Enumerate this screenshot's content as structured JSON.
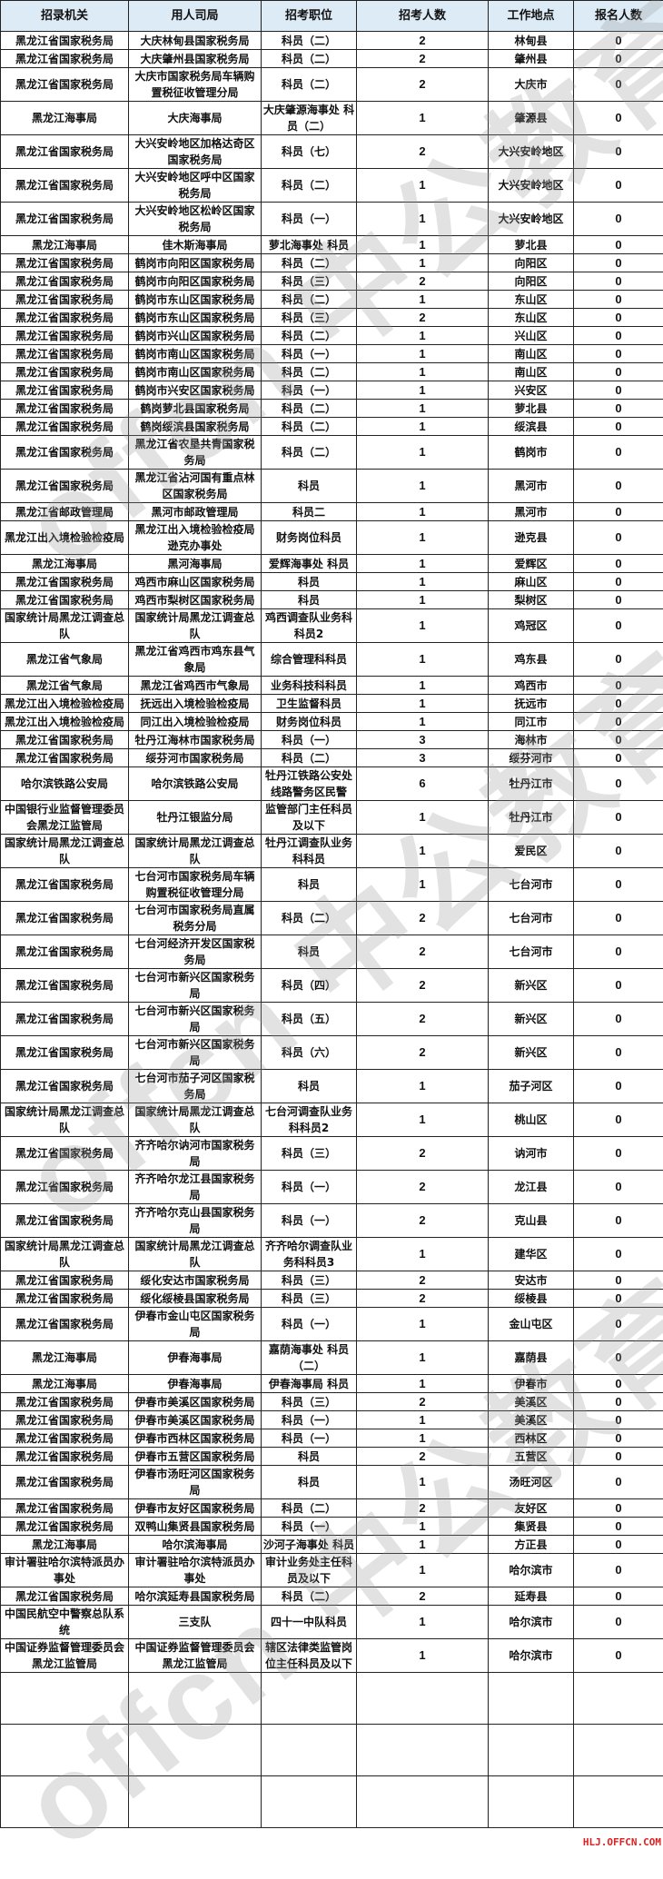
{
  "columns": [
    "招录机关",
    "用人司局",
    "招考职位",
    "招考人数",
    "工作地点",
    "报名人数"
  ],
  "rows": [
    [
      "黑龙江省国家税务局",
      "大庆林甸县国家税务局",
      "科员（二）",
      "2",
      "林甸县",
      "0"
    ],
    [
      "黑龙江省国家税务局",
      "大庆肇州县国家税务局",
      "科员（二）",
      "2",
      "肇州县",
      "0"
    ],
    [
      "黑龙江省国家税务局",
      "大庆市国家税务局车辆购置税征收管理分局",
      "科员（二）",
      "2",
      "大庆市",
      "0"
    ],
    [
      "黑龙江海事局",
      "大庆海事局",
      "大庆肇源海事处 科员（二）",
      "1",
      "肇源县",
      "0"
    ],
    [
      "黑龙江省国家税务局",
      "大兴安岭地区加格达奇区国家税务局",
      "科员（七）",
      "2",
      "大兴安岭地区",
      "0"
    ],
    [
      "黑龙江省国家税务局",
      "大兴安岭地区呼中区国家税务局",
      "科员（二）",
      "1",
      "大兴安岭地区",
      "0"
    ],
    [
      "黑龙江省国家税务局",
      "大兴安岭地区松岭区国家税务局",
      "科员（一）",
      "1",
      "大兴安岭地区",
      "0"
    ],
    [
      "黑龙江海事局",
      "佳木斯海事局",
      "萝北海事处 科员",
      "1",
      "萝北县",
      "0"
    ],
    [
      "黑龙江省国家税务局",
      "鹤岗市向阳区国家税务局",
      "科员（二）",
      "1",
      "向阳区",
      "0"
    ],
    [
      "黑龙江省国家税务局",
      "鹤岗市向阳区国家税务局",
      "科员（三）",
      "2",
      "向阳区",
      "0"
    ],
    [
      "黑龙江省国家税务局",
      "鹤岗市东山区国家税务局",
      "科员（二）",
      "1",
      "东山区",
      "0"
    ],
    [
      "黑龙江省国家税务局",
      "鹤岗市东山区国家税务局",
      "科员（三）",
      "2",
      "东山区",
      "0"
    ],
    [
      "黑龙江省国家税务局",
      "鹤岗市兴山区国家税务局",
      "科员（二）",
      "1",
      "兴山区",
      "0"
    ],
    [
      "黑龙江省国家税务局",
      "鹤岗市南山区国家税务局",
      "科员（一）",
      "1",
      "南山区",
      "0"
    ],
    [
      "黑龙江省国家税务局",
      "鹤岗市南山区国家税务局",
      "科员（二）",
      "1",
      "南山区",
      "0"
    ],
    [
      "黑龙江省国家税务局",
      "鹤岗市兴安区国家税务局",
      "科员（一）",
      "1",
      "兴安区",
      "0"
    ],
    [
      "黑龙江省国家税务局",
      "鹤岗萝北县国家税务局",
      "科员（二）",
      "1",
      "萝北县",
      "0"
    ],
    [
      "黑龙江省国家税务局",
      "鹤岗绥滨县国家税务局",
      "科员（二）",
      "1",
      "绥滨县",
      "0"
    ],
    [
      "黑龙江省国家税务局",
      "黑龙江省农垦共青国家税务局",
      "科员（二）",
      "1",
      "鹤岗市",
      "0"
    ],
    [
      "黑龙江省国家税务局",
      "黑龙江省沾河国有重点林区国家税务局",
      "科员",
      "1",
      "黑河市",
      "0"
    ],
    [
      "黑龙江省邮政管理局",
      "黑河市邮政管理局",
      "科员二",
      "1",
      "黑河市",
      "0"
    ],
    [
      "黑龙江出入境检验检疫局",
      "黑龙江出入境检验检疫局逊克办事处",
      "财务岗位科员",
      "1",
      "逊克县",
      "0"
    ],
    [
      "黑龙江海事局",
      "黑河海事局",
      "爱辉海事处 科员",
      "1",
      "爱辉区",
      "0"
    ],
    [
      "黑龙江省国家税务局",
      "鸡西市麻山区国家税务局",
      "科员",
      "1",
      "麻山区",
      "0"
    ],
    [
      "黑龙江省国家税务局",
      "鸡西市梨树区国家税务局",
      "科员",
      "1",
      "梨树区",
      "0"
    ],
    [
      "国家统计局黑龙江调查总队",
      "国家统计局黑龙江调查总队",
      "鸡西调查队业务科科员2",
      "1",
      "鸡冠区",
      "0"
    ],
    [
      "黑龙江省气象局",
      "黑龙江省鸡西市鸡东县气象局",
      "综合管理科科员",
      "1",
      "鸡东县",
      "0"
    ],
    [
      "黑龙江省气象局",
      "黑龙江省鸡西市气象局",
      "业务科技科科员",
      "1",
      "鸡西市",
      "0"
    ],
    [
      "黑龙江出入境检验检疫局",
      "抚远出入境检验检疫局",
      "卫生监督科员",
      "1",
      "抚远市",
      "0"
    ],
    [
      "黑龙江出入境检验检疫局",
      "同江出入境检验检疫局",
      "财务岗位科员",
      "1",
      "同江市",
      "0"
    ],
    [
      "黑龙江省国家税务局",
      "牡丹江海林市国家税务局",
      "科员（一）",
      "3",
      "海林市",
      "0"
    ],
    [
      "黑龙江省国家税务局",
      "绥芬河市国家税务局",
      "科员（二）",
      "3",
      "绥芬河市",
      "0"
    ],
    [
      "哈尔滨铁路公安局",
      "哈尔滨铁路公安局",
      "牡丹江铁路公安处线路警务区民警",
      "6",
      "牡丹江市",
      "0"
    ],
    [
      "中国银行业监督管理委员会黑龙江监管局",
      "牡丹江银监分局",
      "监管部门主任科员及以下",
      "1",
      "牡丹江市",
      "0"
    ],
    [
      "国家统计局黑龙江调查总队",
      "国家统计局黑龙江调查总队",
      "牡丹江调查队业务科科员",
      "1",
      "爱民区",
      "0"
    ],
    [
      "黑龙江省国家税务局",
      "七台河市国家税务局车辆购置税征收管理分局",
      "科员",
      "1",
      "七台河市",
      "0"
    ],
    [
      "黑龙江省国家税务局",
      "七台河市国家税务局直属税务分局",
      "科员（二）",
      "2",
      "七台河市",
      "0"
    ],
    [
      "黑龙江省国家税务局",
      "七台河经济开发区国家税务局",
      "科员",
      "2",
      "七台河市",
      "0"
    ],
    [
      "黑龙江省国家税务局",
      "七台河市新兴区国家税务局",
      "科员（四）",
      "2",
      "新兴区",
      "0"
    ],
    [
      "黑龙江省国家税务局",
      "七台河市新兴区国家税务局",
      "科员（五）",
      "2",
      "新兴区",
      "0"
    ],
    [
      "黑龙江省国家税务局",
      "七台河市新兴区国家税务局",
      "科员（六）",
      "2",
      "新兴区",
      "0"
    ],
    [
      "黑龙江省国家税务局",
      "七台河市茄子河区国家税务局",
      "科员",
      "1",
      "茄子河区",
      "0"
    ],
    [
      "国家统计局黑龙江调查总队",
      "国家统计局黑龙江调查总队",
      "七台河调查队业务科科员2",
      "1",
      "桃山区",
      "0"
    ],
    [
      "黑龙江省国家税务局",
      "齐齐哈尔讷河市国家税务局",
      "科员（三）",
      "2",
      "讷河市",
      "0"
    ],
    [
      "黑龙江省国家税务局",
      "齐齐哈尔龙江县国家税务局",
      "科员（一）",
      "2",
      "龙江县",
      "0"
    ],
    [
      "黑龙江省国家税务局",
      "齐齐哈尔克山县国家税务局",
      "科员（一）",
      "2",
      "克山县",
      "0"
    ],
    [
      "国家统计局黑龙江调查总队",
      "国家统计局黑龙江调查总队",
      "齐齐哈尔调查队业务科科员3",
      "1",
      "建华区",
      "0"
    ],
    [
      "黑龙江省国家税务局",
      "绥化安达市国家税务局",
      "科员（三）",
      "2",
      "安达市",
      "0"
    ],
    [
      "黑龙江省国家税务局",
      "绥化绥棱县国家税务局",
      "科员（三）",
      "2",
      "绥棱县",
      "0"
    ],
    [
      "黑龙江省国家税务局",
      "伊春市金山屯区国家税务局",
      "科员（一）",
      "1",
      "金山屯区",
      "0"
    ],
    [
      "黑龙江海事局",
      "伊春海事局",
      "嘉荫海事处 科员（二）",
      "1",
      "嘉荫县",
      "0"
    ],
    [
      "黑龙江海事局",
      "伊春海事局",
      "伊春海事局 科员",
      "1",
      "伊春市",
      "0"
    ],
    [
      "黑龙江省国家税务局",
      "伊春市美溪区国家税务局",
      "科员（三）",
      "2",
      "美溪区",
      "0"
    ],
    [
      "黑龙江省国家税务局",
      "伊春市美溪区国家税务局",
      "科员（一）",
      "1",
      "美溪区",
      "0"
    ],
    [
      "黑龙江省国家税务局",
      "伊春市西林区国家税务局",
      "科员（一）",
      "1",
      "西林区",
      "0"
    ],
    [
      "黑龙江省国家税务局",
      "伊春市五营区国家税务局",
      "科员",
      "2",
      "五营区",
      "0"
    ],
    [
      "黑龙江省国家税务局",
      "伊春市汤旺河区国家税务局",
      "科员",
      "1",
      "汤旺河区",
      "0"
    ],
    [
      "黑龙江省国家税务局",
      "伊春市友好区国家税务局",
      "科员（二）",
      "2",
      "友好区",
      "0"
    ],
    [
      "黑龙江省国家税务局",
      "双鸭山集贤县国家税务局",
      "科员（一）",
      "1",
      "集贤县",
      "0"
    ],
    [
      "黑龙江海事局",
      "哈尔滨海事局",
      "沙河子海事处 科员",
      "1",
      "方正县",
      "0"
    ],
    [
      "审计署驻哈尔滨特派员办事处",
      "审计署驻哈尔滨特派员办事处",
      "审计业务处主任科员及以下",
      "1",
      "哈尔滨市",
      "0"
    ],
    [
      "黑龙江省国家税务局",
      "哈尔滨延寿县国家税务局",
      "科员（二）",
      "2",
      "延寿县",
      "0"
    ],
    [
      "中国民航空中警察总队系统",
      "三支队",
      "四十一中队科员",
      "1",
      "哈尔滨市",
      "0"
    ],
    [
      "中国证券监督管理委员会黑龙江监管局",
      "中国证券监督管理委员会黑龙江监管局",
      "辖区法律类监管岗位主任科员及以下",
      "1",
      "哈尔滨市",
      "0"
    ]
  ],
  "watermark": "offcn 中公教育",
  "footer": "HLJ.OFFCN.COM"
}
